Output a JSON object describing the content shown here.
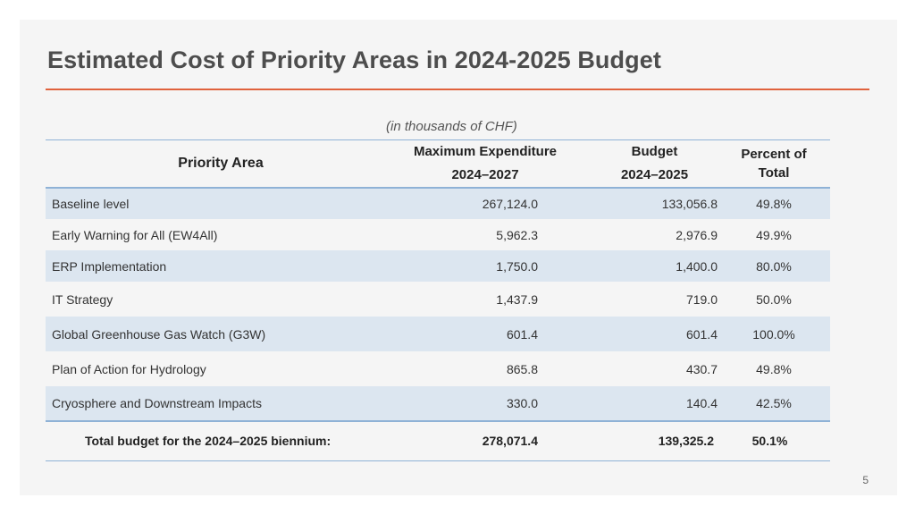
{
  "title": "Estimated Cost of Priority Areas in 2024-2025 Budget",
  "unit_note": "(in thousands of CHF)",
  "headers": {
    "area": "Priority Area",
    "max_exp_line1": "Maximum Expenditure",
    "max_exp_line2": "2024–2027",
    "budget_line1": "Budget",
    "budget_line2": "2024–2025",
    "pct_line1": "Percent of",
    "pct_line2": "Total"
  },
  "rows": [
    {
      "area": "Baseline level",
      "max": "267,124.0",
      "budget": "133,056.8",
      "pct": "49.8%"
    },
    {
      "area": "Early Warning for All (EW4All)",
      "max": "5,962.3",
      "budget": "2,976.9",
      "pct": "49.9%"
    },
    {
      "area": "ERP Implementation",
      "max": "1,750.0",
      "budget": "1,400.0",
      "pct": "80.0%"
    },
    {
      "area": "IT Strategy",
      "max": "1,437.9",
      "budget": "719.0",
      "pct": "50.0%"
    },
    {
      "area": "Global Greenhouse Gas Watch (G3W)",
      "max": "601.4",
      "budget": "601.4",
      "pct": "100.0%"
    },
    {
      "area": "Plan of Action for Hydrology",
      "max": "865.8",
      "budget": "430.7",
      "pct": "49.8%"
    },
    {
      "area": "Cryosphere and Downstream Impacts",
      "max": "330.0",
      "budget": "140.4",
      "pct": "42.5%"
    }
  ],
  "total": {
    "label": "Total budget for the 2024–2025 biennium:",
    "max": "278,071.4",
    "budget": "139,325.2",
    "pct": "50.1%"
  },
  "page_number": "5",
  "colors": {
    "accent_rule": "#e0623d",
    "row_shade": "#dce6f0",
    "table_rule": "#8fb2d6"
  }
}
